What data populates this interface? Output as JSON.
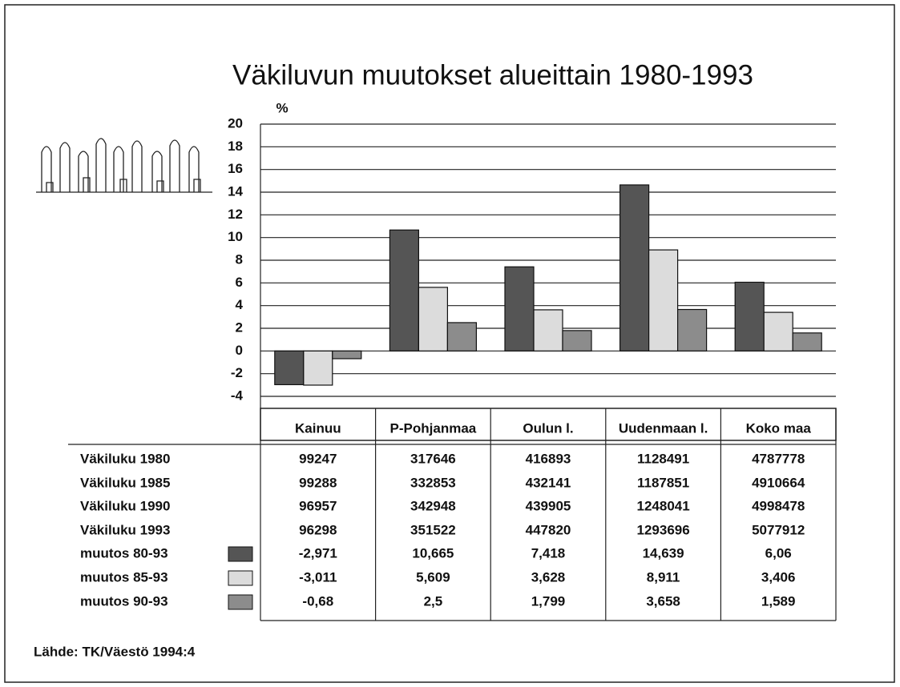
{
  "chart_data": {
    "type": "bar",
    "title": "Väkiluvun muutokset alueittain 1980-1993",
    "ylabel": "%",
    "categories": [
      "Kainuu",
      "P-Pohjanmaa",
      "Oulun l.",
      "Uudenmaan l.",
      "Koko maa"
    ],
    "series": [
      {
        "name": "muutos 80-93",
        "color": "#555555",
        "values": [
          -2.971,
          10.665,
          7.418,
          14.639,
          6.06
        ],
        "value_labels": [
          "-2,971",
          "10,665",
          "7,418",
          "14,639",
          "6,06"
        ]
      },
      {
        "name": "muutos 85-93",
        "color": "#dcdcdc",
        "values": [
          -3.011,
          5.609,
          3.628,
          8.911,
          3.406
        ],
        "value_labels": [
          "-3,011",
          "5,609",
          "3,628",
          "8,911",
          "3,406"
        ]
      },
      {
        "name": "muutos 90-93",
        "color": "#8c8c8c",
        "values": [
          -0.68,
          2.5,
          1.799,
          3.658,
          1.589
        ],
        "value_labels": [
          "-0,68",
          "2,5",
          "1,799",
          "3,658",
          "1,589"
        ]
      }
    ],
    "ylim": [
      -4,
      20
    ],
    "yticks": [
      -4,
      -2,
      0,
      2,
      4,
      6,
      8,
      10,
      12,
      14,
      16,
      18,
      20
    ],
    "grid": true,
    "table": {
      "rows": [
        {
          "label": "Väkiluku 1980",
          "values": [
            "99247",
            "317646",
            "416893",
            "1128491",
            "4787778"
          ]
        },
        {
          "label": "Väkiluku 1985",
          "values": [
            "99288",
            "332853",
            "432141",
            "1187851",
            "4910664"
          ]
        },
        {
          "label": "Väkiluku 1990",
          "values": [
            "96957",
            "342948",
            "439905",
            "1248041",
            "4998478"
          ]
        },
        {
          "label": "Väkiluku 1993",
          "values": [
            "96298",
            "351522",
            "447820",
            "1293696",
            "5077912"
          ]
        }
      ]
    },
    "source": "Lähde: TK/Väestö 1994:4"
  }
}
